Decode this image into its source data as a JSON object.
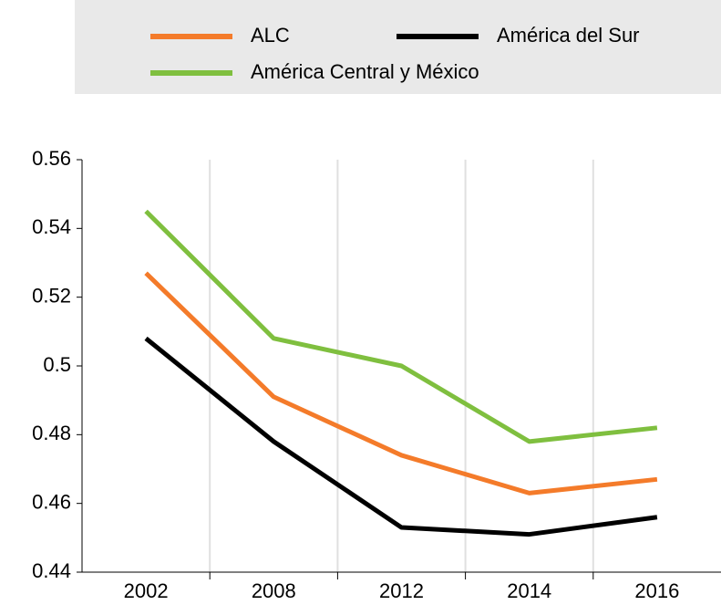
{
  "chart_data": {
    "type": "line",
    "categories": [
      "2002",
      "2008",
      "2012",
      "2014",
      "2016"
    ],
    "series": [
      {
        "name": "ALC",
        "color": "#f47b2a",
        "values": [
          0.527,
          0.491,
          0.474,
          0.463,
          0.467
        ]
      },
      {
        "name": "América del Sur",
        "color": "#000000",
        "values": [
          0.508,
          0.478,
          0.453,
          0.451,
          0.456
        ]
      },
      {
        "name": "América Central y México",
        "color": "#7fbf3f",
        "values": [
          0.545,
          0.508,
          0.5,
          0.478,
          0.482
        ]
      }
    ],
    "ylim": [
      0.44,
      0.56
    ],
    "yticks": [
      0.44,
      0.46,
      0.48,
      0.5,
      0.52,
      0.54,
      0.56
    ],
    "legend": "top"
  }
}
